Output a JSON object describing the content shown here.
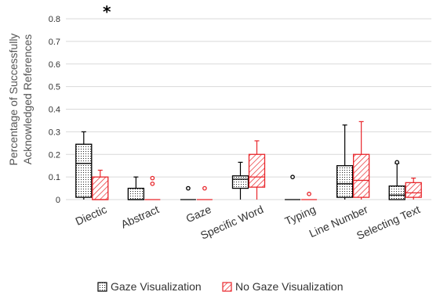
{
  "chart_data": {
    "type": "box",
    "ylabel_line1": "Percentage of Successfully",
    "ylabel_line2": "Acknowledged  References",
    "ylim": [
      0,
      0.8
    ],
    "yticks": [
      "0",
      "0.1",
      "0.2",
      "0.3",
      "0.4",
      "0.5",
      "0.6",
      "0.7",
      "0.8"
    ],
    "categories": [
      "Diectic",
      "Abstract",
      "Gaze",
      "Specific Word",
      "Typing",
      "Line Number",
      "Selecting Text"
    ],
    "significance_marker": "*",
    "significance_category": "Diectic",
    "series": [
      {
        "name": "Gaze Visualization",
        "color": "#000000",
        "pattern": "dots",
        "boxes": [
          {
            "min": 0.0,
            "q1": 0.01,
            "median": 0.16,
            "q3": 0.245,
            "max": 0.3,
            "outliers": []
          },
          {
            "min": 0.0,
            "q1": 0.0,
            "median": 0.0,
            "q3": 0.05,
            "max": 0.1,
            "outliers": []
          },
          {
            "min": 0.0,
            "q1": 0.0,
            "median": 0.0,
            "q3": 0.0,
            "max": 0.0,
            "outliers": [
              0.05
            ]
          },
          {
            "min": 0.0,
            "q1": 0.05,
            "median": 0.09,
            "q3": 0.105,
            "max": 0.165,
            "outliers": []
          },
          {
            "min": 0.0,
            "q1": 0.0,
            "median": 0.0,
            "q3": 0.0,
            "max": 0.0,
            "outliers": [
              0.1
            ]
          },
          {
            "min": 0.0,
            "q1": 0.01,
            "median": 0.07,
            "q3": 0.15,
            "max": 0.33,
            "outliers": []
          },
          {
            "min": 0.0,
            "q1": 0.0,
            "median": 0.02,
            "q3": 0.06,
            "max": 0.16,
            "outliers": [
              0.165
            ]
          }
        ]
      },
      {
        "name": "No Gaze Visualization",
        "color": "#e8262b",
        "pattern": "hatch",
        "boxes": [
          {
            "min": 0.0,
            "q1": 0.0,
            "median": 0.0,
            "q3": 0.1,
            "max": 0.13,
            "outliers": []
          },
          {
            "min": 0.0,
            "q1": 0.0,
            "median": 0.0,
            "q3": 0.0,
            "max": 0.0,
            "outliers": [
              0.07,
              0.095
            ]
          },
          {
            "min": 0.0,
            "q1": 0.0,
            "median": 0.0,
            "q3": 0.0,
            "max": 0.0,
            "outliers": [
              0.05
            ]
          },
          {
            "min": 0.0,
            "q1": 0.055,
            "median": 0.1,
            "q3": 0.2,
            "max": 0.26,
            "outliers": []
          },
          {
            "min": 0.0,
            "q1": 0.0,
            "median": 0.0,
            "q3": 0.0,
            "max": 0.0,
            "outliers": [
              0.025
            ]
          },
          {
            "min": 0.0,
            "q1": 0.01,
            "median": 0.085,
            "q3": 0.2,
            "max": 0.345,
            "outliers": []
          },
          {
            "min": 0.0,
            "q1": 0.01,
            "median": 0.03,
            "q3": 0.075,
            "max": 0.095,
            "outliers": []
          }
        ]
      }
    ],
    "legend_position": "bottom-center"
  }
}
